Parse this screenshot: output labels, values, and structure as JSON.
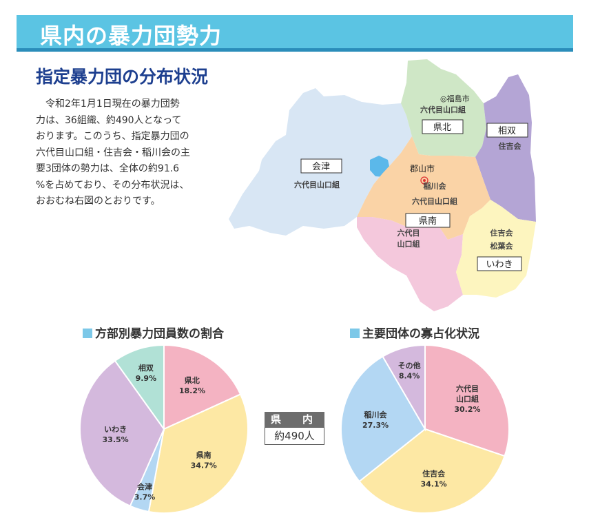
{
  "header": {
    "title": "県内の暴力団勢力"
  },
  "section": {
    "subtitle": "指定暴力団の分布状況",
    "body_lines": [
      "　令和2年1月1日現在の暴力団勢",
      "力は、36組織、約490人となって",
      "おります。このうち、指定暴力団の",
      "六代目山口組・住吉会・稲川会の主",
      "要3団体の勢力は、全体の約91.6",
      "%を占めており、その分布状況は、",
      "おおむね右図のとおりです。"
    ]
  },
  "map": {
    "regions": {
      "aizu": {
        "label": "会津",
        "gang": "六代目山口組",
        "color": "#d8e6f4"
      },
      "kenpoku": {
        "label": "県北",
        "gang": "六代目山口組",
        "city": "◎福島市",
        "color": "#cfe7c6"
      },
      "soso": {
        "label": "相双",
        "gang": "住吉会",
        "color": "#b4a5d5"
      },
      "kenchu": {
        "gang1": "稲川会",
        "gang2": "六代目山口組",
        "city": "郡山市",
        "color": "#fad3a6"
      },
      "kennan": {
        "label": "県南",
        "gang_line1": "六代目",
        "gang_line2": "山口組",
        "color": "#f4c8dc"
      },
      "iwaki": {
        "label": "いわき",
        "gang1": "住吉会",
        "gang2": "松葉会",
        "color": "#fdf5bf"
      }
    }
  },
  "center": {
    "head": "県　内",
    "value": "約490人"
  },
  "charts": {
    "left_title": "方部別暴力団員数の割合",
    "right_title": "主要団体の寡占化状況"
  },
  "chart_data": [
    {
      "type": "pie",
      "title": "方部別暴力団員数の割合",
      "slices": [
        {
          "name": "県北",
          "value": 18.2,
          "label": "18.2%",
          "color": "#f4b3c2"
        },
        {
          "name": "県南",
          "value": 34.7,
          "label": "34.7%",
          "color": "#fde8a4"
        },
        {
          "name": "会津",
          "value": 3.7,
          "label": "3.7%",
          "color": "#b3d7f3"
        },
        {
          "name": "いわき",
          "value": 33.5,
          "label": "33.5%",
          "color": "#d4b9dd"
        },
        {
          "name": "相双",
          "value": 9.9,
          "label": "9.9%",
          "color": "#b1e1d6"
        }
      ]
    },
    {
      "type": "pie",
      "title": "主要団体の寡占化状況",
      "slices": [
        {
          "name": "六代目山口組",
          "value": 30.2,
          "label": "30.2%",
          "color": "#f4b3c2"
        },
        {
          "name": "住吉会",
          "value": 34.1,
          "label": "34.1%",
          "color": "#fde8a4"
        },
        {
          "name": "稲川会",
          "value": 27.3,
          "label": "27.3%",
          "color": "#b3d7f3"
        },
        {
          "name": "その他",
          "value": 8.4,
          "label": "8.4%",
          "color": "#d4b9dd"
        }
      ]
    }
  ]
}
